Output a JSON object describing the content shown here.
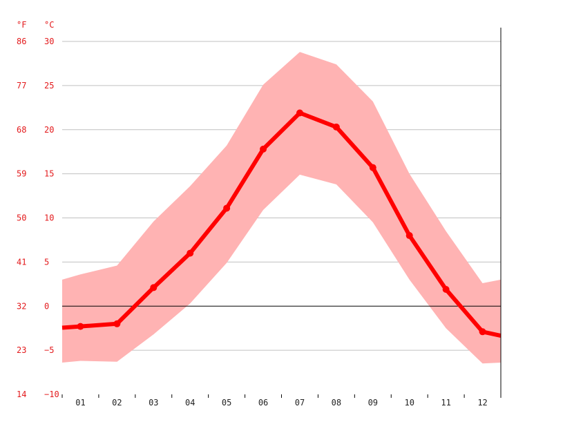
{
  "chart_data": {
    "type": "line",
    "title": "",
    "xlabel": "",
    "ylabel": "",
    "unit_f": "°F",
    "unit_c": "°C",
    "categories": [
      "01",
      "02",
      "03",
      "04",
      "05",
      "06",
      "07",
      "08",
      "09",
      "10",
      "11",
      "12"
    ],
    "y_ticks_c": [
      30,
      25,
      20,
      15,
      10,
      5,
      0,
      -5,
      -10
    ],
    "y_ticks_c_labels": [
      "30",
      "25",
      "20",
      "15",
      "10",
      "5",
      "0",
      "−5",
      "−10"
    ],
    "y_ticks_f_labels": [
      "86",
      "77",
      "68",
      "59",
      "50",
      "41",
      "32",
      "23",
      "14"
    ],
    "ylim": [
      -10,
      30
    ],
    "series": [
      {
        "values": [
          -2.3,
          -2.0,
          2.1,
          6.0,
          11.1,
          17.8,
          21.9,
          20.3,
          15.7,
          8.0,
          1.9,
          -2.9
        ]
      }
    ],
    "band": {
      "max": [
        3.0,
        3.6,
        4.6,
        9.6,
        13.6,
        18.2,
        25.1,
        28.8,
        27.4,
        23.2,
        15.0,
        8.5,
        2.6,
        3.0
      ],
      "min": [
        -6.4,
        -6.2,
        -6.3,
        -3.2,
        0.3,
        4.9,
        10.9,
        14.9,
        13.8,
        9.5,
        3.0,
        -2.5,
        -6.5,
        -6.4
      ]
    },
    "colors": {
      "line": "#ff0000",
      "band": "#ffb3b3",
      "grid": "#c0c0c0",
      "zero": "#000000",
      "tick_label": "#e31a1c",
      "x_label": "#222222"
    },
    "grid": true,
    "legend": "none"
  }
}
